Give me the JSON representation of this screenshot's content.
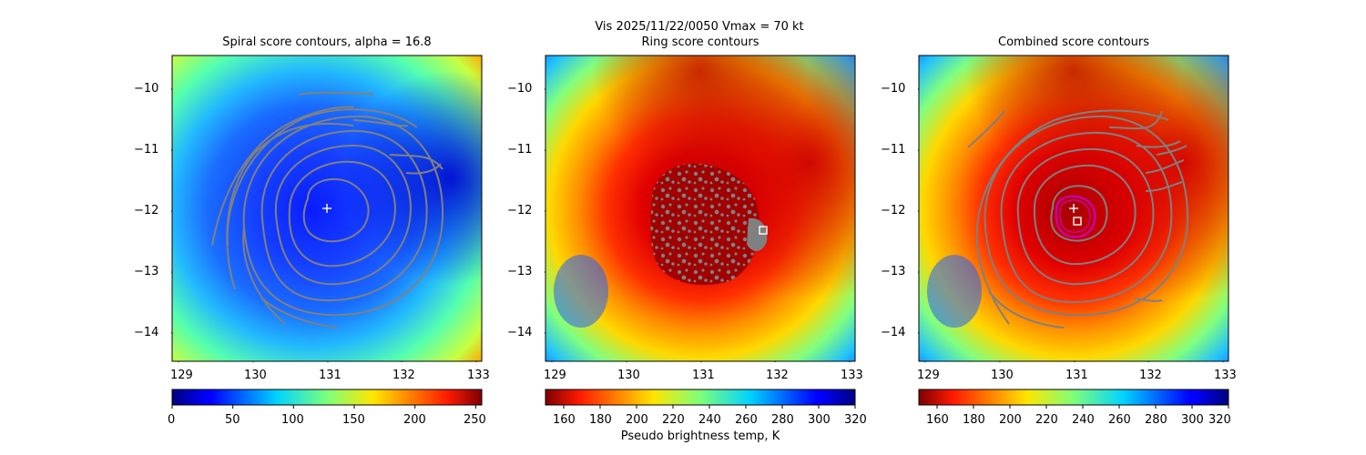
{
  "suptitle": "Vis  2025/11/22/0050    Vmax = 70 kt",
  "colorbar_label": "Pseudo brightness temp, K",
  "chart_data": [
    {
      "type": "heatmap",
      "title": "Spiral score contours, alpha = 16.8",
      "xlim": [
        128.85,
        133.9
      ],
      "ylim": [
        -14.45,
        -9.45
      ],
      "xticks": [
        129,
        130,
        131,
        132,
        133
      ],
      "yticks": [
        -10,
        -11,
        -12,
        -13,
        -14
      ],
      "colorbar": {
        "colormap": "jet",
        "reversed": false,
        "range": [
          0,
          255
        ],
        "ticks": [
          0,
          50,
          100,
          150,
          200,
          250
        ]
      },
      "markers": [
        {
          "symbol": "plus",
          "color": "#ffffff",
          "x": 131.35,
          "y": -11.95
        }
      ]
    },
    {
      "type": "heatmap",
      "title": "Ring score contours",
      "xlim": [
        128.85,
        133.9
      ],
      "ylim": [
        -14.45,
        -9.45
      ],
      "xticks": [
        129,
        130,
        131,
        132,
        133
      ],
      "yticks": [
        -10,
        -11,
        -12,
        -13,
        -14
      ],
      "colorbar": {
        "colormap": "jet",
        "reversed": true,
        "range": [
          150,
          320
        ],
        "ticks": [
          160,
          180,
          200,
          220,
          240,
          260,
          280,
          300,
          320
        ]
      },
      "markers": [
        {
          "symbol": "square",
          "color": "#ffffff",
          "x": 132.4,
          "y": -12.3
        }
      ]
    },
    {
      "type": "heatmap",
      "title": "Combined score contours",
      "xlim": [
        128.85,
        133.9
      ],
      "ylim": [
        -14.45,
        -9.45
      ],
      "xticks": [
        129,
        130,
        131,
        132,
        133
      ],
      "yticks": [
        -10,
        -11,
        -12,
        -13,
        -14
      ],
      "colorbar": {
        "colormap": "jet",
        "reversed": true,
        "range": [
          150,
          320
        ],
        "ticks": [
          160,
          180,
          200,
          220,
          240,
          260,
          280,
          300,
          320
        ]
      },
      "markers": [
        {
          "symbol": "plus",
          "color": "#ffffff",
          "x": 131.35,
          "y": -11.95
        },
        {
          "symbol": "square",
          "color": "#ffffff",
          "x": 131.4,
          "y": -12.15
        }
      ],
      "ring": {
        "color": "#cc00cc",
        "x": 131.45,
        "y": -12.15
      }
    }
  ]
}
